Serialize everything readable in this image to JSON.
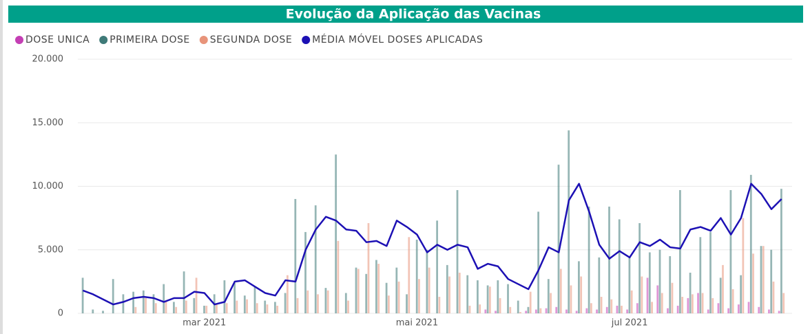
{
  "chart_data": {
    "type": "bar",
    "title": "Evolução da Aplicação das Vacinas",
    "categories": [
      null,
      null,
      null,
      null,
      null,
      null,
      null,
      null,
      null,
      null,
      null,
      null,
      "mar 2021",
      null,
      null,
      null,
      null,
      null,
      null,
      null,
      null,
      null,
      null,
      null,
      null,
      null,
      null,
      null,
      null,
      null,
      null,
      null,
      null,
      "mai 2021",
      null,
      null,
      null,
      null,
      null,
      null,
      null,
      null,
      null,
      null,
      null,
      null,
      null,
      null,
      null,
      null,
      null,
      null,
      null,
      null,
      "jul 2021",
      null,
      null,
      null,
      null,
      null,
      null,
      null,
      null,
      null,
      null,
      null,
      null,
      null,
      null,
      null
    ],
    "series": [
      {
        "name": "DOSE UNICA",
        "color": "#c43fb4",
        "values": [
          0,
          0,
          0,
          0,
          0,
          0,
          0,
          0,
          0,
          0,
          0,
          0,
          0,
          0,
          0,
          0,
          0,
          0,
          0,
          0,
          0,
          0,
          0,
          0,
          0,
          0,
          0,
          0,
          0,
          0,
          0,
          0,
          0,
          0,
          0,
          0,
          0,
          0,
          0,
          0,
          300,
          200,
          0,
          0,
          200,
          300,
          400,
          500,
          300,
          200,
          400,
          300,
          500,
          600,
          300,
          800,
          2800,
          2200,
          400,
          600,
          1200,
          1600,
          300,
          800,
          400,
          700,
          900,
          500,
          300,
          200
        ]
      },
      {
        "name": "PRIMEIRA DOSE",
        "color": "#3f7a78",
        "values": [
          2800,
          300,
          200,
          2700,
          1500,
          1700,
          1800,
          1500,
          2300,
          900,
          3300,
          1200,
          600,
          1500,
          2600,
          2400,
          1400,
          2100,
          1000,
          900,
          1600,
          9000,
          6400,
          8500,
          2000,
          12500,
          1600,
          3600,
          3100,
          4200,
          2400,
          3600,
          1500,
          5800,
          5000,
          7300,
          3800,
          9700,
          3000,
          2600,
          2200,
          2600,
          2300,
          1000,
          500,
          8000,
          2700,
          11700,
          14400,
          4100,
          8400,
          4400,
          8400,
          7400,
          4500,
          7100,
          4800,
          5000,
          4500,
          9700,
          3200,
          6000,
          6400,
          2800,
          9700,
          3000,
          10900,
          5300,
          5000,
          9800
        ]
      },
      {
        "name": "SEGUNDA DOSE",
        "color": "#e8947a",
        "values": [
          0,
          0,
          0,
          0,
          0,
          500,
          1200,
          800,
          1000,
          500,
          1000,
          2800,
          600,
          700,
          800,
          1000,
          1100,
          800,
          700,
          600,
          3000,
          1200,
          1800,
          1500,
          1800,
          5700,
          1000,
          3500,
          7100,
          3900,
          1400,
          2500,
          6000,
          2700,
          3600,
          1300,
          2900,
          3200,
          600,
          700,
          2100,
          1200,
          500,
          100,
          1700,
          400,
          1600,
          3500,
          2200,
          2900,
          800,
          1300,
          1100,
          600,
          1800,
          2900,
          900,
          1600,
          2400,
          1300,
          1500,
          1600,
          1200,
          3800,
          1900,
          7500,
          4700,
          5300,
          2500,
          1600
        ]
      },
      {
        "name": "MÉDIA MÓVEL DOSES APLICADAS",
        "color": "#1c10b4",
        "type": "line",
        "values": [
          1800,
          1500,
          1100,
          700,
          900,
          1200,
          1300,
          1200,
          900,
          1200,
          1200,
          1700,
          1600,
          700,
          900,
          2500,
          2600,
          2100,
          1600,
          1400,
          2600,
          2500,
          5000,
          6600,
          7600,
          7300,
          6600,
          6500,
          5600,
          5700,
          5300,
          7300,
          6800,
          6200,
          4800,
          5400,
          5000,
          5400,
          5200,
          3500,
          3900,
          3700,
          2700,
          2300,
          1900,
          3400,
          5200,
          4800,
          8900,
          10200,
          8000,
          5400,
          4300,
          4900,
          4400,
          5600,
          5300,
          5800,
          5200,
          5100,
          6600,
          6800,
          6500,
          7500,
          6200,
          7500,
          10200,
          9400,
          8200,
          9000
        ]
      }
    ],
    "ylim": [
      0,
      20000
    ],
    "yticks": [
      0,
      {
        "value": 5000,
        "label": "5.000"
      },
      {
        "value": 10000,
        "label": "10.000"
      },
      {
        "value": 15000,
        "label": "15.000"
      },
      {
        "value": 20000,
        "label": "20.000"
      }
    ],
    "grid": true
  }
}
